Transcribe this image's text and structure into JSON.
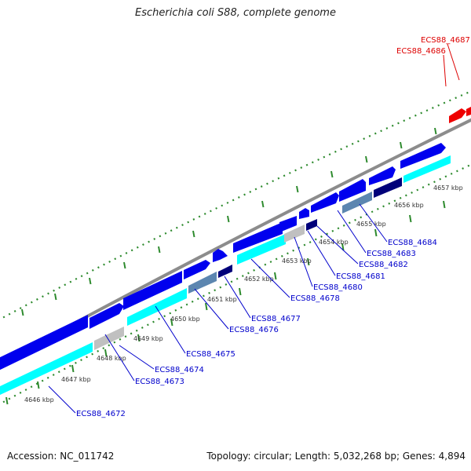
{
  "title": "Escherichia coli S88, complete genome",
  "footer": {
    "accession": "Accession: NC_011742",
    "summary": "Topology: circular; Length: 5,032,268 bp; Genes: 4,894"
  },
  "colors": {
    "backbone": "#8c8c8c",
    "tick": "#2d8a2d",
    "gene_forward": "#0000ee",
    "cds_forward": "#00ffff",
    "gene_reverse": "#0000ee",
    "pseudo": "#c0c0c0",
    "steel": "#5c86b0",
    "navy": "#00007a",
    "highlight": "#ee0000",
    "label": "#0000cc",
    "label_highlight": "#dd0000"
  },
  "scale_labels": [
    "4646 kbp",
    "4647 kbp",
    "4648 kbp",
    "4649 kbp",
    "4650 kbp",
    "4651 kbp",
    "4652 kbp",
    "4653 kbp",
    "4654 kbp",
    "4655 kbp",
    "4656 kbp",
    "4657 kbp"
  ],
  "gene_labels": [
    {
      "text": "ECS88_4672",
      "highlight": false
    },
    {
      "text": "ECS88_4673",
      "highlight": false
    },
    {
      "text": "ECS88_4674",
      "highlight": false
    },
    {
      "text": "ECS88_4675",
      "highlight": false
    },
    {
      "text": "ECS88_4676",
      "highlight": false
    },
    {
      "text": "ECS88_4677",
      "highlight": false
    },
    {
      "text": "ECS88_4678",
      "highlight": false
    },
    {
      "text": "ECS88_4680",
      "highlight": false
    },
    {
      "text": "ECS88_4681",
      "highlight": false
    },
    {
      "text": "ECS88_4682",
      "highlight": false
    },
    {
      "text": "ECS88_4683",
      "highlight": false
    },
    {
      "text": "ECS88_4684",
      "highlight": false
    },
    {
      "text": "ECS88_4686",
      "highlight": true
    },
    {
      "text": "ECS88_4687",
      "highlight": true
    }
  ]
}
